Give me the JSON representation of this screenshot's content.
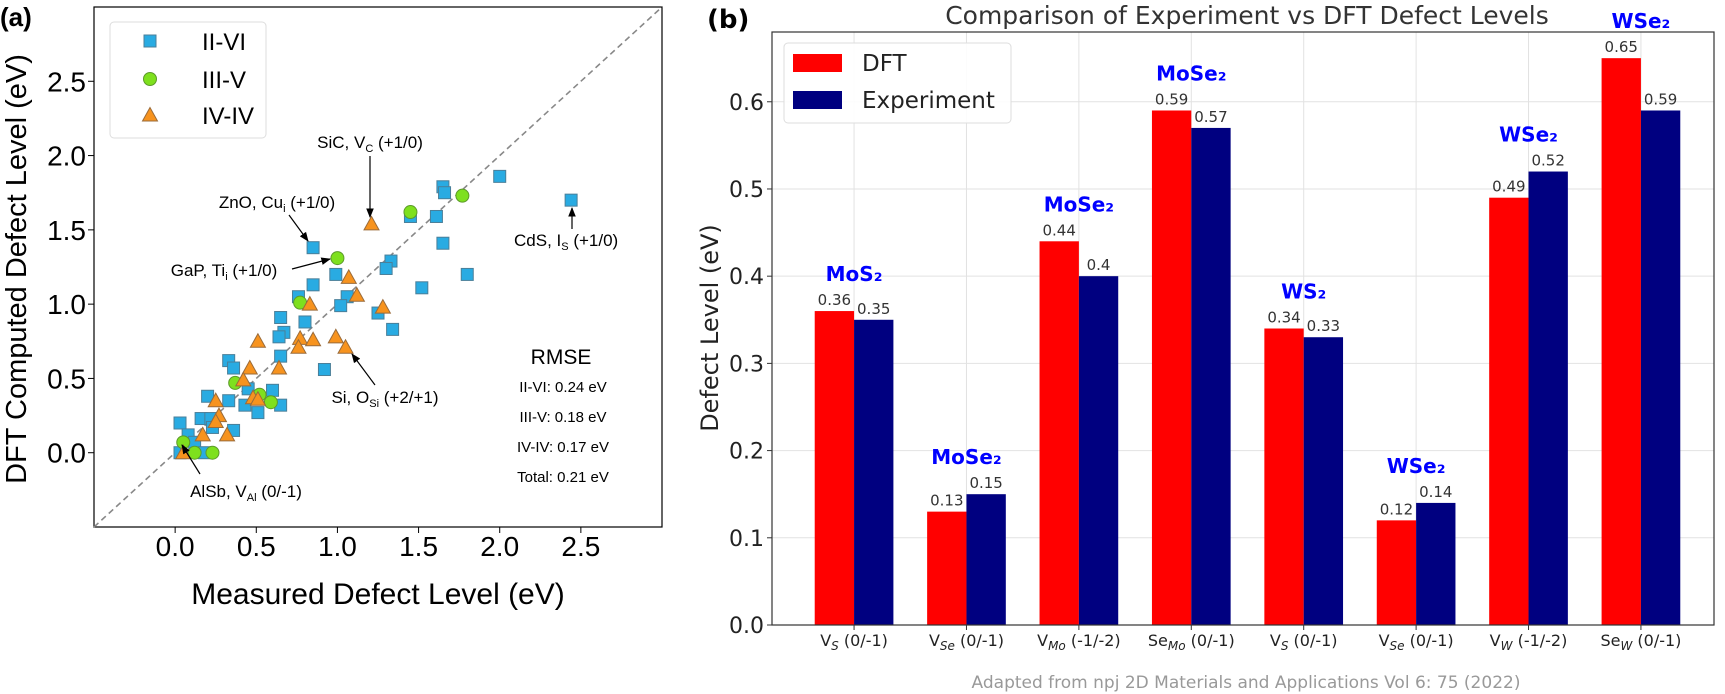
{
  "chart_data": [
    {
      "type": "scatter",
      "panel_label": "(a)",
      "xlabel": "Measured Defect Level (eV)",
      "ylabel": "DFT Computed Defect Level (eV)",
      "xlim": [
        -0.5,
        3.0
      ],
      "ylim": [
        -0.5,
        3.0
      ],
      "xticks": [
        "0.0",
        "0.5",
        "1.0",
        "1.5",
        "2.0",
        "2.5"
      ],
      "yticks": [
        "0.0",
        "0.5",
        "1.0",
        "1.5",
        "2.0",
        "2.5"
      ],
      "identity_line": true,
      "grid": false,
      "legend": "upper-left",
      "series": [
        {
          "name": "II-VI",
          "marker": "square",
          "color": "#29abe2",
          "points": [
            [
              2.0,
              1.86
            ],
            [
              1.65,
              1.79
            ],
            [
              1.66,
              1.75
            ],
            [
              2.44,
              1.7
            ],
            [
              1.45,
              1.59
            ],
            [
              1.61,
              1.59
            ],
            [
              1.65,
              1.41
            ],
            [
              0.85,
              1.38
            ],
            [
              1.33,
              1.29
            ],
            [
              1.3,
              1.24
            ],
            [
              0.99,
              1.2
            ],
            [
              1.8,
              1.2
            ],
            [
              0.85,
              1.13
            ],
            [
              1.52,
              1.11
            ],
            [
              0.76,
              1.05
            ],
            [
              1.06,
              1.05
            ],
            [
              1.02,
              0.99
            ],
            [
              1.25,
              0.94
            ],
            [
              0.65,
              0.91
            ],
            [
              0.8,
              0.88
            ],
            [
              1.34,
              0.83
            ],
            [
              0.67,
              0.81
            ],
            [
              0.64,
              0.78
            ],
            [
              0.65,
              0.65
            ],
            [
              0.33,
              0.62
            ],
            [
              0.36,
              0.57
            ],
            [
              0.92,
              0.56
            ],
            [
              0.45,
              0.43
            ],
            [
              0.6,
              0.42
            ],
            [
              0.2,
              0.38
            ],
            [
              0.33,
              0.35
            ],
            [
              0.43,
              0.32
            ],
            [
              0.65,
              0.32
            ],
            [
              0.51,
              0.27
            ],
            [
              0.03,
              0.2
            ],
            [
              0.16,
              0.23
            ],
            [
              0.22,
              0.23
            ],
            [
              0.08,
              0.12
            ],
            [
              0.23,
              0.17
            ],
            [
              0.36,
              0.15
            ],
            [
              0.12,
              0.07
            ],
            [
              0.03,
              0.0
            ],
            [
              0.18,
              0.0
            ]
          ]
        },
        {
          "name": "III-V",
          "marker": "circle",
          "color": "#7ee01e",
          "points": [
            [
              1.77,
              1.73
            ],
            [
              1.45,
              1.62
            ],
            [
              1.0,
              1.31
            ],
            [
              0.77,
              1.01
            ],
            [
              0.37,
              0.47
            ],
            [
              0.52,
              0.39
            ],
            [
              0.59,
              0.34
            ],
            [
              0.05,
              0.07
            ],
            [
              0.12,
              0.0
            ],
            [
              0.23,
              0.0
            ]
          ]
        },
        {
          "name": "IV-IV",
          "marker": "triangle",
          "color": "#f7931e",
          "points": [
            [
              1.21,
              1.54
            ],
            [
              1.07,
              1.18
            ],
            [
              1.12,
              1.06
            ],
            [
              0.83,
              1.0
            ],
            [
              1.28,
              0.98
            ],
            [
              0.51,
              0.75
            ],
            [
              0.77,
              0.77
            ],
            [
              0.85,
              0.76
            ],
            [
              0.99,
              0.78
            ],
            [
              0.76,
              0.71
            ],
            [
              1.05,
              0.71
            ],
            [
              0.64,
              0.57
            ],
            [
              0.46,
              0.57
            ],
            [
              0.42,
              0.49
            ],
            [
              0.25,
              0.35
            ],
            [
              0.48,
              0.37
            ],
            [
              0.51,
              0.36
            ],
            [
              0.27,
              0.25
            ],
            [
              0.25,
              0.21
            ],
            [
              0.17,
              0.12
            ],
            [
              0.32,
              0.12
            ],
            [
              0.05,
              0.0
            ]
          ]
        }
      ],
      "annotations": [
        {
          "pre": "SiC, V",
          "sub": "C",
          "post": " (+1/0)",
          "target": [
            1.21,
            1.54
          ]
        },
        {
          "pre": "ZnO, Cu",
          "sub": "i",
          "post": " (+1/0)",
          "target": [
            0.85,
            1.38
          ]
        },
        {
          "pre": "GaP, Ti",
          "sub": "i",
          "post": " (+1/0)",
          "target": [
            1.0,
            1.31
          ]
        },
        {
          "pre": "CdS, I",
          "sub": "S",
          "post": " (+1/0)",
          "target": [
            2.44,
            1.7
          ]
        },
        {
          "pre": "Si, O",
          "sub": "Si",
          "post": " (+2/+1)",
          "target": [
            1.05,
            0.71
          ]
        },
        {
          "pre": "AlSb, V",
          "sub": "Al",
          "post": " (0/-1)",
          "target": [
            0.05,
            0.05
          ]
        }
      ],
      "rmse": {
        "title": "RMSE",
        "lines": [
          "II-VI: 0.24 eV",
          "III-V: 0.18 eV",
          "IV-IV: 0.17 eV",
          "Total: 0.21 eV"
        ]
      }
    },
    {
      "type": "bar",
      "panel_label": "(b)",
      "title": "Comparison of Experiment vs DFT Defect Levels",
      "xlabel": "",
      "ylabel": "Defect Level (eV)",
      "ylim": [
        0,
        0.68
      ],
      "yticks": [
        "0.0",
        "0.1",
        "0.2",
        "0.3",
        "0.4",
        "0.5",
        "0.6"
      ],
      "grid": true,
      "legend": "upper-left",
      "categories": [
        {
          "base": "V",
          "sub": "S",
          "charge": " (0/-1)"
        },
        {
          "base": "V",
          "sub": "Se",
          "charge": " (0/-1)"
        },
        {
          "base": "V",
          "sub": "Mo",
          "charge": " (-1/-2)"
        },
        {
          "base": "Se",
          "sub": "Mo",
          "charge": " (0/-1)"
        },
        {
          "base": "V",
          "sub": "S",
          "charge": " (0/-1)"
        },
        {
          "base": "V",
          "sub": "Se",
          "charge": " (0/-1)"
        },
        {
          "base": "V",
          "sub": "W",
          "charge": " (-1/-2)"
        },
        {
          "base": "Se",
          "sub": "W",
          "charge": " (0/-1)"
        }
      ],
      "materials": [
        "MoS₂",
        "MoSe₂",
        "MoSe₂",
        "MoSe₂",
        "WS₂",
        "WSe₂",
        "WSe₂",
        "WSe₂"
      ],
      "material_color": "#0000ff",
      "series": [
        {
          "name": "DFT",
          "color": "#ff0000",
          "values": [
            0.36,
            0.13,
            0.44,
            0.59,
            0.34,
            0.12,
            0.49,
            0.65
          ]
        },
        {
          "name": "Experiment",
          "color": "#000080",
          "values": [
            0.35,
            0.15,
            0.4,
            0.57,
            0.33,
            0.14,
            0.52,
            0.59
          ]
        }
      ],
      "note": "Adapted from npj 2D Materials and Applications Vol 6: 75 (2022)"
    }
  ]
}
